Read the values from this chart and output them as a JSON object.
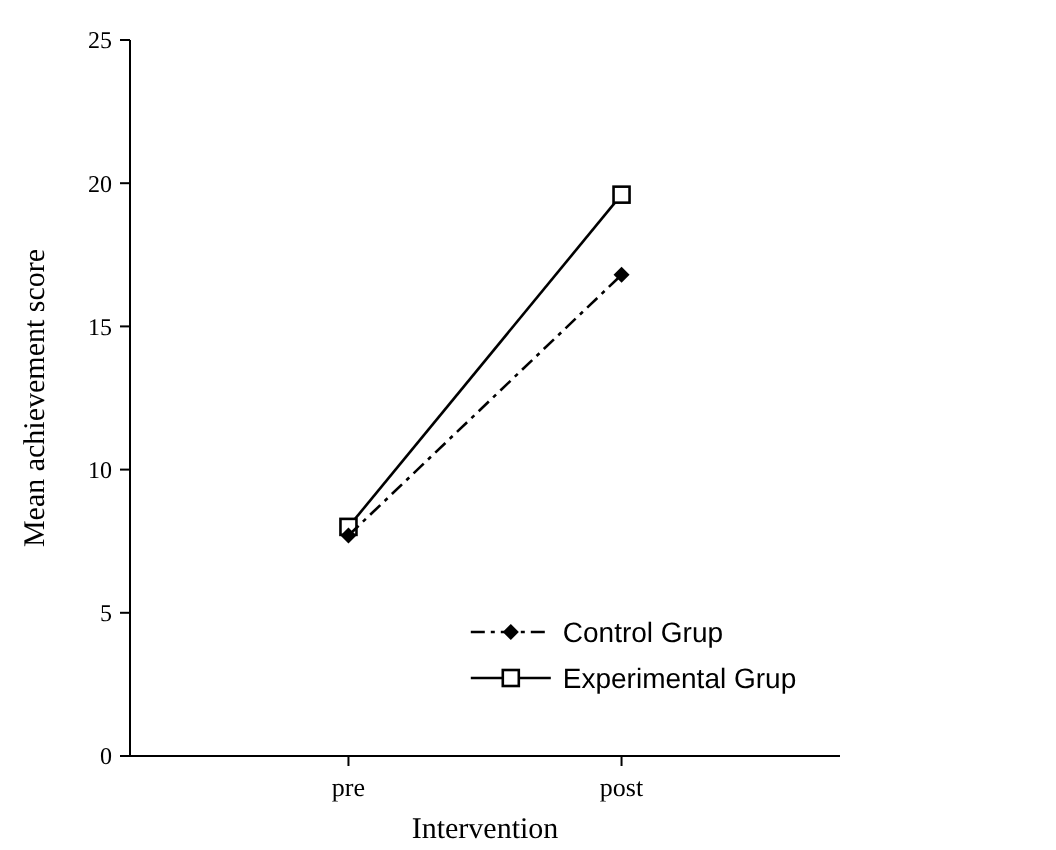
{
  "chart_data": {
    "type": "line",
    "xlabel": "Intervention",
    "ylabel": "Mean achievement score",
    "categories": [
      "pre",
      "post"
    ],
    "ylim": [
      0,
      25
    ],
    "yticks": [
      0,
      5,
      10,
      15,
      20,
      25
    ],
    "legend": "bottom",
    "series": [
      {
        "name": "Control Grup",
        "color": "#000000",
        "values": [
          7.7,
          16.8
        ],
        "marker": "diamond",
        "line_style": "dashed"
      },
      {
        "name": "Experimental Grup",
        "color": "#000000",
        "values": [
          8.0,
          19.6
        ],
        "marker": "square",
        "line_style": "solid"
      }
    ]
  }
}
